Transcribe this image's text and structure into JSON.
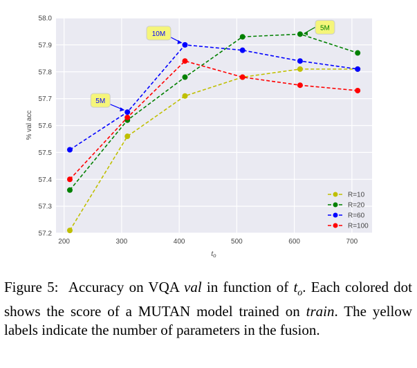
{
  "chart_data": {
    "type": "line",
    "title": "",
    "xlabel": "t_o",
    "ylabel": "% val acc",
    "xlim": [
      186,
      735
    ],
    "ylim": [
      57.2,
      58.0
    ],
    "xticks": [
      200,
      300,
      400,
      500,
      600,
      700
    ],
    "yticks": [
      57.2,
      57.3,
      57.4,
      57.5,
      57.6,
      57.7,
      57.8,
      57.9,
      58.0
    ],
    "grid": true,
    "legend_position": "bottom-right",
    "x": [
      210,
      310,
      410,
      510,
      610,
      710
    ],
    "series": [
      {
        "name": "R=10",
        "color": "#bfbf00",
        "values": [
          57.21,
          57.56,
          57.71,
          57.78,
          57.81,
          57.81
        ]
      },
      {
        "name": "R=20",
        "color": "#008000",
        "values": [
          57.36,
          57.62,
          57.78,
          57.93,
          57.94,
          57.87
        ]
      },
      {
        "name": "R=60",
        "color": "#0000ff",
        "values": [
          57.51,
          57.65,
          57.9,
          57.88,
          57.84,
          57.81
        ]
      },
      {
        "name": "R=100",
        "color": "#ff0000",
        "values": [
          57.4,
          57.63,
          57.84,
          57.78,
          57.75,
          57.73
        ]
      }
    ],
    "annotations": [
      {
        "text": "10M",
        "series": "R=60",
        "x": 410,
        "y": 57.9,
        "color": "#0000ff",
        "box_color": "#f5f57a"
      },
      {
        "text": "5M",
        "series": "R=60",
        "x": 310,
        "y": 57.65,
        "color": "#0000ff",
        "box_color": "#f5f57a"
      },
      {
        "text": "5M",
        "series": "R=20",
        "x": 610,
        "y": 57.94,
        "color": "#008000",
        "box_color": "#f5f57a"
      }
    ],
    "background_color": "#eaeaf2"
  },
  "caption": {
    "label": "Figure 5:",
    "t1": "Accuracy on VQA ",
    "val": "val",
    "t2": " in function of ",
    "var": "t",
    "sub": "o",
    "t3": ". Each colored dot shows the score of a MUTAN model trained on ",
    "train": "train",
    "t4": ". The yellow labels indicate the number of parameters in the fusion."
  }
}
